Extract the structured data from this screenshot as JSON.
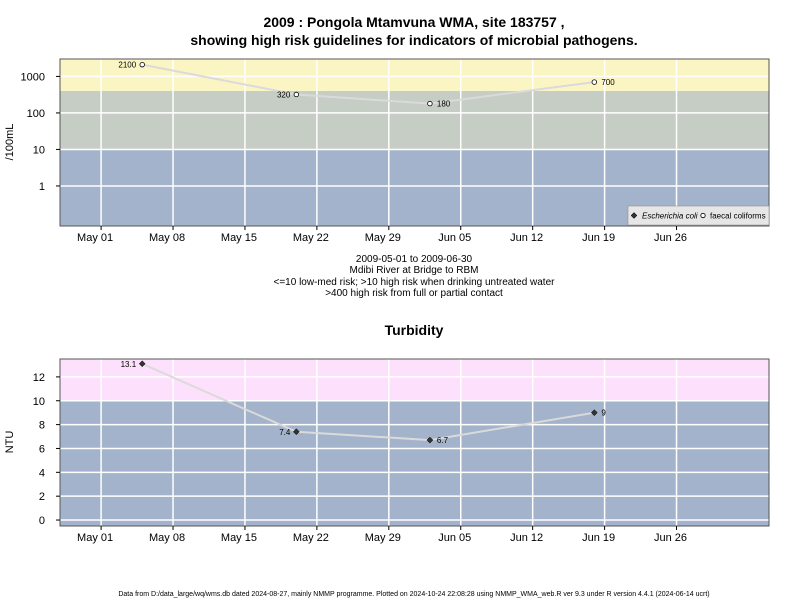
{
  "chart_data": [
    {
      "type": "line",
      "title_lines": [
        "2009 : Pongola Mtamvuna WMA, site 183757 ,",
        "showing high risk guidelines for indicators of microbial pathogens."
      ],
      "ylabel": "/100mL",
      "y_scale": "log",
      "ylim": [
        0.08,
        3000
      ],
      "y_ticks": [
        1,
        10,
        100,
        1000
      ],
      "y_tick_labels": [
        "1",
        "10",
        "100",
        "1000"
      ],
      "xlim": [
        "2009-04-27",
        "2009-07-05"
      ],
      "x_ticks": [
        "2009-05-01",
        "2009-05-08",
        "2009-05-15",
        "2009-05-22",
        "2009-05-29",
        "2009-06-05",
        "2009-06-12",
        "2009-06-19",
        "2009-06-26"
      ],
      "x_tick_labels": [
        "May 01",
        "May 08",
        "May 15",
        "May 22",
        "May 29",
        "Jun 05",
        "Jun 12",
        "Jun 19",
        "Jun 26"
      ],
      "grid": true,
      "bands": [
        {
          "from": 0.08,
          "to": 10,
          "color": "#a3b3cb"
        },
        {
          "from": 10,
          "to": 400,
          "color": "#c5cdc5"
        },
        {
          "from": 400,
          "to": 3000,
          "color": "#fbf5c4"
        }
      ],
      "series": [
        {
          "name": "faecal coliforms",
          "marker": "circle-open",
          "x": [
            "2009-05-05",
            "2009-05-20",
            "2009-06-02",
            "2009-06-18"
          ],
          "values": [
            2100,
            320,
            180,
            700
          ],
          "labels": [
            "2100",
            "320",
            "180",
            "700"
          ]
        }
      ],
      "legend": {
        "placement": "bottom-right",
        "entries": [
          {
            "label": "Escherichia coli",
            "marker": "diamond-filled",
            "italic": true
          },
          {
            "label": "faecal coliforms",
            "marker": "circle-open",
            "italic": false
          }
        ]
      },
      "caption_lines": [
        "2009-05-01 to 2009-06-30",
        "Mdibi River at Bridge to RBM",
        "<=10 low-med risk; >10 high risk when drinking untreated water",
        ">400 high risk from full or partial contact"
      ]
    },
    {
      "type": "line",
      "title": "Turbidity",
      "ylabel": "NTU",
      "ylim": [
        -0.5,
        13.5
      ],
      "y_ticks": [
        0,
        2,
        4,
        6,
        8,
        10,
        12
      ],
      "y_tick_labels": [
        "0",
        "2",
        "4",
        "6",
        "8",
        "10",
        "12"
      ],
      "xlim": [
        "2009-04-27",
        "2009-07-05"
      ],
      "x_ticks": [
        "2009-05-01",
        "2009-05-08",
        "2009-05-15",
        "2009-05-22",
        "2009-05-29",
        "2009-06-05",
        "2009-06-12",
        "2009-06-19",
        "2009-06-26"
      ],
      "x_tick_labels": [
        "May 01",
        "May 08",
        "May 15",
        "May 22",
        "May 29",
        "Jun 05",
        "Jun 12",
        "Jun 19",
        "Jun 26"
      ],
      "grid": true,
      "bands": [
        {
          "from": -0.5,
          "to": 10,
          "color": "#a3b3cb"
        },
        {
          "from": 10,
          "to": 13.5,
          "color": "#fde0fb"
        }
      ],
      "series": [
        {
          "marker": "diamond-filled",
          "x": [
            "2009-05-05",
            "2009-05-20",
            "2009-06-02",
            "2009-06-18"
          ],
          "values": [
            13.1,
            7.4,
            6.7,
            9
          ],
          "labels": [
            "13.1",
            "7.4",
            "6.7",
            "9"
          ]
        }
      ]
    }
  ],
  "footer": "Data from D:/data_large/wq/wms.db dated 2024-08-27, mainly NMMP programme. Plotted on 2024-10-24 22:08:28 using NMMP_WMA_web.R ver 9.3 under R version 4.4.1 (2024-06-14 ucrt)"
}
